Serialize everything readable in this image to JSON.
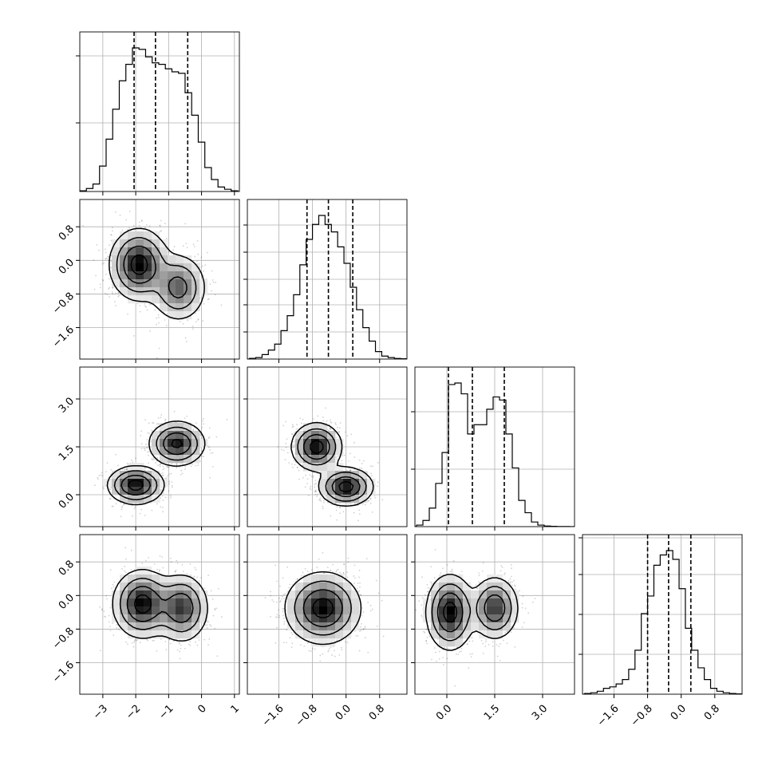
{
  "chart_data": {
    "type": "corner",
    "title": "",
    "n_params": 4,
    "params": [
      {
        "range": [
          -3.7,
          1.15
        ],
        "ticks": [
          -3,
          -2,
          -1,
          0,
          1
        ],
        "tick_labels": [
          "−3",
          "−2",
          "−1",
          "0",
          "1"
        ],
        "quantiles": [
          -2.05,
          -1.4,
          -0.42
        ],
        "hist_bins": [
          -3.7,
          -3.5,
          -3.3,
          -3.1,
          -2.9,
          -2.7,
          -2.5,
          -2.3,
          -2.1,
          -1.9,
          -1.7,
          -1.5,
          -1.3,
          -1.1,
          -0.9,
          -0.7,
          -0.5,
          -0.3,
          -0.1,
          0.1,
          0.3,
          0.5,
          0.7,
          0.9,
          1.1
        ],
        "hist_counts": [
          0.005,
          0.02,
          0.05,
          0.17,
          0.35,
          0.55,
          0.74,
          0.85,
          0.96,
          0.95,
          0.9,
          0.86,
          0.85,
          0.82,
          0.8,
          0.79,
          0.66,
          0.51,
          0.33,
          0.16,
          0.08,
          0.03,
          0.015,
          0.005
        ],
        "hist_ytick_fracs": [
          0.43,
          0.85
        ]
      },
      {
        "range": [
          -2.35,
          1.45
        ],
        "ticks": [
          -1.6,
          -0.8,
          0.0,
          0.8
        ],
        "tick_labels": [
          "−1.6",
          "−0.8",
          "0.0",
          "0.8"
        ],
        "quantiles": [
          -0.93,
          -0.42,
          0.16
        ],
        "hist_bins": [
          -2.3,
          -2.15,
          -2.0,
          -1.85,
          -1.7,
          -1.55,
          -1.4,
          -1.25,
          -1.1,
          -0.95,
          -0.8,
          -0.65,
          -0.5,
          -0.35,
          -0.2,
          -0.05,
          0.1,
          0.25,
          0.4,
          0.55,
          0.7,
          0.85,
          1.0,
          1.15,
          1.3,
          1.45
        ],
        "hist_counts": [
          0.005,
          0.01,
          0.03,
          0.06,
          0.1,
          0.19,
          0.29,
          0.43,
          0.63,
          0.8,
          0.9,
          0.96,
          0.9,
          0.85,
          0.75,
          0.64,
          0.48,
          0.33,
          0.21,
          0.12,
          0.05,
          0.02,
          0.01,
          0.004,
          0.002
        ],
        "hist_ytick_fracs": [
          0.17,
          0.34,
          0.5,
          0.67,
          0.84
        ]
      },
      {
        "range": [
          -1.0,
          4.0
        ],
        "ticks": [
          0.0,
          1.5,
          3.0
        ],
        "tick_labels": [
          "0.0",
          "1.5",
          "3.0"
        ],
        "quantiles": [
          0.05,
          0.8,
          1.8
        ],
        "hist_bins": [
          -0.95,
          -0.75,
          -0.55,
          -0.35,
          -0.15,
          0.05,
          0.25,
          0.45,
          0.65,
          0.85,
          1.05,
          1.25,
          1.45,
          1.65,
          1.85,
          2.05,
          2.25,
          2.45,
          2.65,
          2.85,
          3.05,
          3.25,
          3.45,
          3.65,
          3.85
        ],
        "hist_counts": [
          0.01,
          0.04,
          0.12,
          0.28,
          0.48,
          0.92,
          0.93,
          0.86,
          0.6,
          0.66,
          0.66,
          0.76,
          0.84,
          0.82,
          0.6,
          0.38,
          0.17,
          0.09,
          0.03,
          0.01,
          0.004,
          0.002,
          0.001,
          0.001
        ],
        "hist_ytick_fracs": [
          0.36,
          0.72
        ]
      },
      {
        "range": [
          -2.35,
          1.45
        ],
        "ticks": [
          -1.6,
          -0.8,
          0.0,
          0.8
        ],
        "tick_labels": [
          "−1.6",
          "−0.8",
          "0.0",
          "0.8"
        ],
        "quantiles": [
          -0.8,
          -0.3,
          0.23
        ],
        "hist_bins": [
          -2.3,
          -2.15,
          -2.0,
          -1.85,
          -1.7,
          -1.55,
          -1.4,
          -1.25,
          -1.1,
          -0.95,
          -0.8,
          -0.65,
          -0.5,
          -0.35,
          -0.2,
          -0.05,
          0.1,
          0.25,
          0.4,
          0.55,
          0.7,
          0.85,
          1.0,
          1.15,
          1.3,
          1.45
        ],
        "hist_counts": [
          0.005,
          0.01,
          0.02,
          0.04,
          0.05,
          0.07,
          0.1,
          0.17,
          0.3,
          0.55,
          0.67,
          0.88,
          0.95,
          0.98,
          0.92,
          0.72,
          0.45,
          0.3,
          0.18,
          0.1,
          0.04,
          0.02,
          0.01,
          0.005,
          0.002
        ],
        "hist_ytick_fracs": [
          0.25,
          0.5,
          0.75,
          0.98
        ]
      }
    ],
    "pairs": [
      {
        "row": 1,
        "col": 0,
        "rho": -0.25,
        "modes": [
          {
            "x": -1.9,
            "y": -0.1,
            "w": 0.6,
            "sx": 0.42,
            "sy": 0.4
          },
          {
            "x": -0.7,
            "y": -0.65,
            "w": 0.4,
            "sx": 0.4,
            "sy": 0.38
          }
        ]
      },
      {
        "row": 2,
        "col": 0,
        "rho": 0.0,
        "modes": [
          {
            "x": -2.0,
            "y": 0.3,
            "w": 0.52,
            "sx": 0.4,
            "sy": 0.28
          },
          {
            "x": -0.75,
            "y": 1.6,
            "w": 0.48,
            "sx": 0.4,
            "sy": 0.33
          }
        ]
      },
      {
        "row": 2,
        "col": 1,
        "rho": 0.0,
        "modes": [
          {
            "x": -0.7,
            "y": 1.5,
            "w": 0.5,
            "sx": 0.28,
            "sy": 0.35
          },
          {
            "x": 0.0,
            "y": 0.25,
            "w": 0.5,
            "sx": 0.3,
            "sy": 0.28
          }
        ]
      },
      {
        "row": 3,
        "col": 0,
        "rho": 0.0,
        "modes": [
          {
            "x": -1.8,
            "y": -0.2,
            "w": 0.55,
            "sx": 0.42,
            "sy": 0.38
          },
          {
            "x": -0.6,
            "y": -0.3,
            "w": 0.45,
            "sx": 0.38,
            "sy": 0.38
          }
        ]
      },
      {
        "row": 3,
        "col": 1,
        "rho": 0.0,
        "modes": [
          {
            "x": -0.55,
            "y": -0.3,
            "w": 1.0,
            "sx": 0.42,
            "sy": 0.4
          }
        ]
      },
      {
        "row": 3,
        "col": 2,
        "rho": 0.0,
        "modes": [
          {
            "x": 0.1,
            "y": -0.4,
            "w": 0.55,
            "sx": 0.35,
            "sy": 0.42
          },
          {
            "x": 1.5,
            "y": -0.3,
            "w": 0.45,
            "sx": 0.35,
            "sy": 0.35
          }
        ]
      }
    ],
    "contour_levels": [
      0.85,
      0.55,
      0.28,
      0.1
    ],
    "grid": true,
    "legend": "none"
  }
}
